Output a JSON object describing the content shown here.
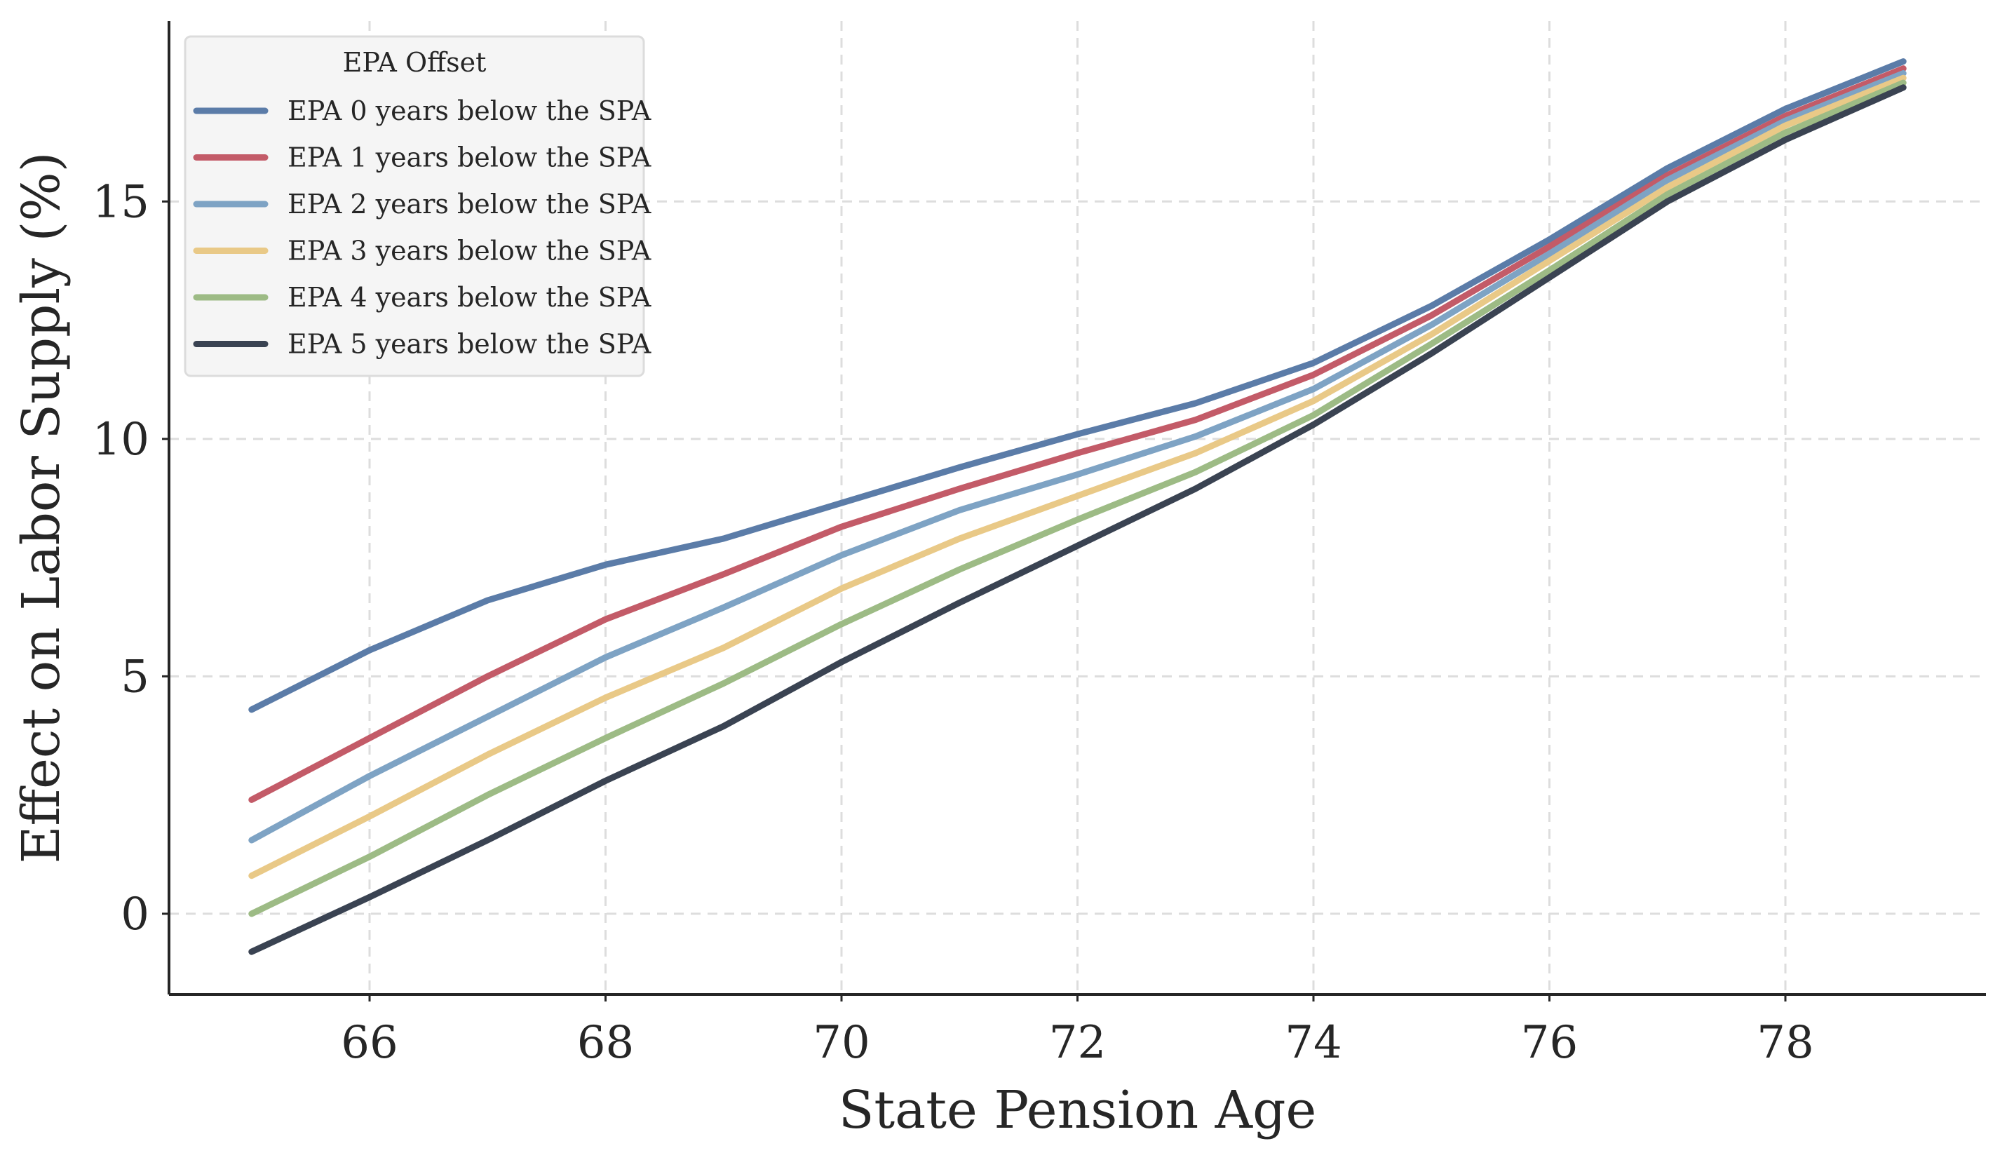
{
  "chart_data": {
    "type": "line",
    "title": "",
    "xlabel": "State Pension Age",
    "ylabel": "Effect on Labor Supply (%)",
    "xlim": [
      64.3,
      79.7
    ],
    "ylim": [
      -1.7,
      18.8
    ],
    "xticks": [
      66,
      68,
      70,
      72,
      74,
      76,
      78
    ],
    "yticks": [
      0,
      5,
      10,
      15
    ],
    "grid": true,
    "legend": {
      "title": "EPA Offset",
      "placement": "top-left"
    },
    "x": [
      65,
      66,
      67,
      68,
      69,
      70,
      71,
      72,
      73,
      74,
      75,
      76,
      77,
      78,
      79
    ],
    "series": [
      {
        "name": "EPA 0 years below the SPA",
        "color": "#5b7ca8",
        "values": [
          4.3,
          5.55,
          6.6,
          7.35,
          7.9,
          8.65,
          9.4,
          10.1,
          10.75,
          11.6,
          12.8,
          14.2,
          15.7,
          16.95,
          17.95
        ]
      },
      {
        "name": "EPA 1 years below the SPA",
        "color": "#c35b68",
        "values": [
          2.4,
          3.7,
          5.0,
          6.2,
          7.15,
          8.15,
          8.95,
          9.7,
          10.4,
          11.35,
          12.6,
          14.05,
          15.55,
          16.8,
          17.8
        ]
      },
      {
        "name": "EPA 2 years below the SPA",
        "color": "#7ea3c4",
        "values": [
          1.55,
          2.9,
          4.15,
          5.4,
          6.45,
          7.55,
          8.5,
          9.25,
          10.05,
          11.05,
          12.4,
          13.9,
          15.45,
          16.7,
          17.7
        ]
      },
      {
        "name": "EPA 3 years below the SPA",
        "color": "#e9c987",
        "values": [
          0.8,
          2.05,
          3.35,
          4.55,
          5.6,
          6.85,
          7.9,
          8.8,
          9.7,
          10.8,
          12.2,
          13.75,
          15.3,
          16.6,
          17.6
        ]
      },
      {
        "name": "EPA 4 years below the SPA",
        "color": "#9dbb85",
        "values": [
          0.0,
          1.2,
          2.5,
          3.7,
          4.85,
          6.1,
          7.25,
          8.3,
          9.3,
          10.5,
          12.0,
          13.55,
          15.15,
          16.45,
          17.5
        ]
      },
      {
        "name": "EPA 5 years below the SPA",
        "color": "#3a4352",
        "values": [
          -0.8,
          0.35,
          1.55,
          2.8,
          3.95,
          5.3,
          6.55,
          7.75,
          8.95,
          10.3,
          11.8,
          13.4,
          15.0,
          16.3,
          17.4
        ]
      }
    ]
  }
}
